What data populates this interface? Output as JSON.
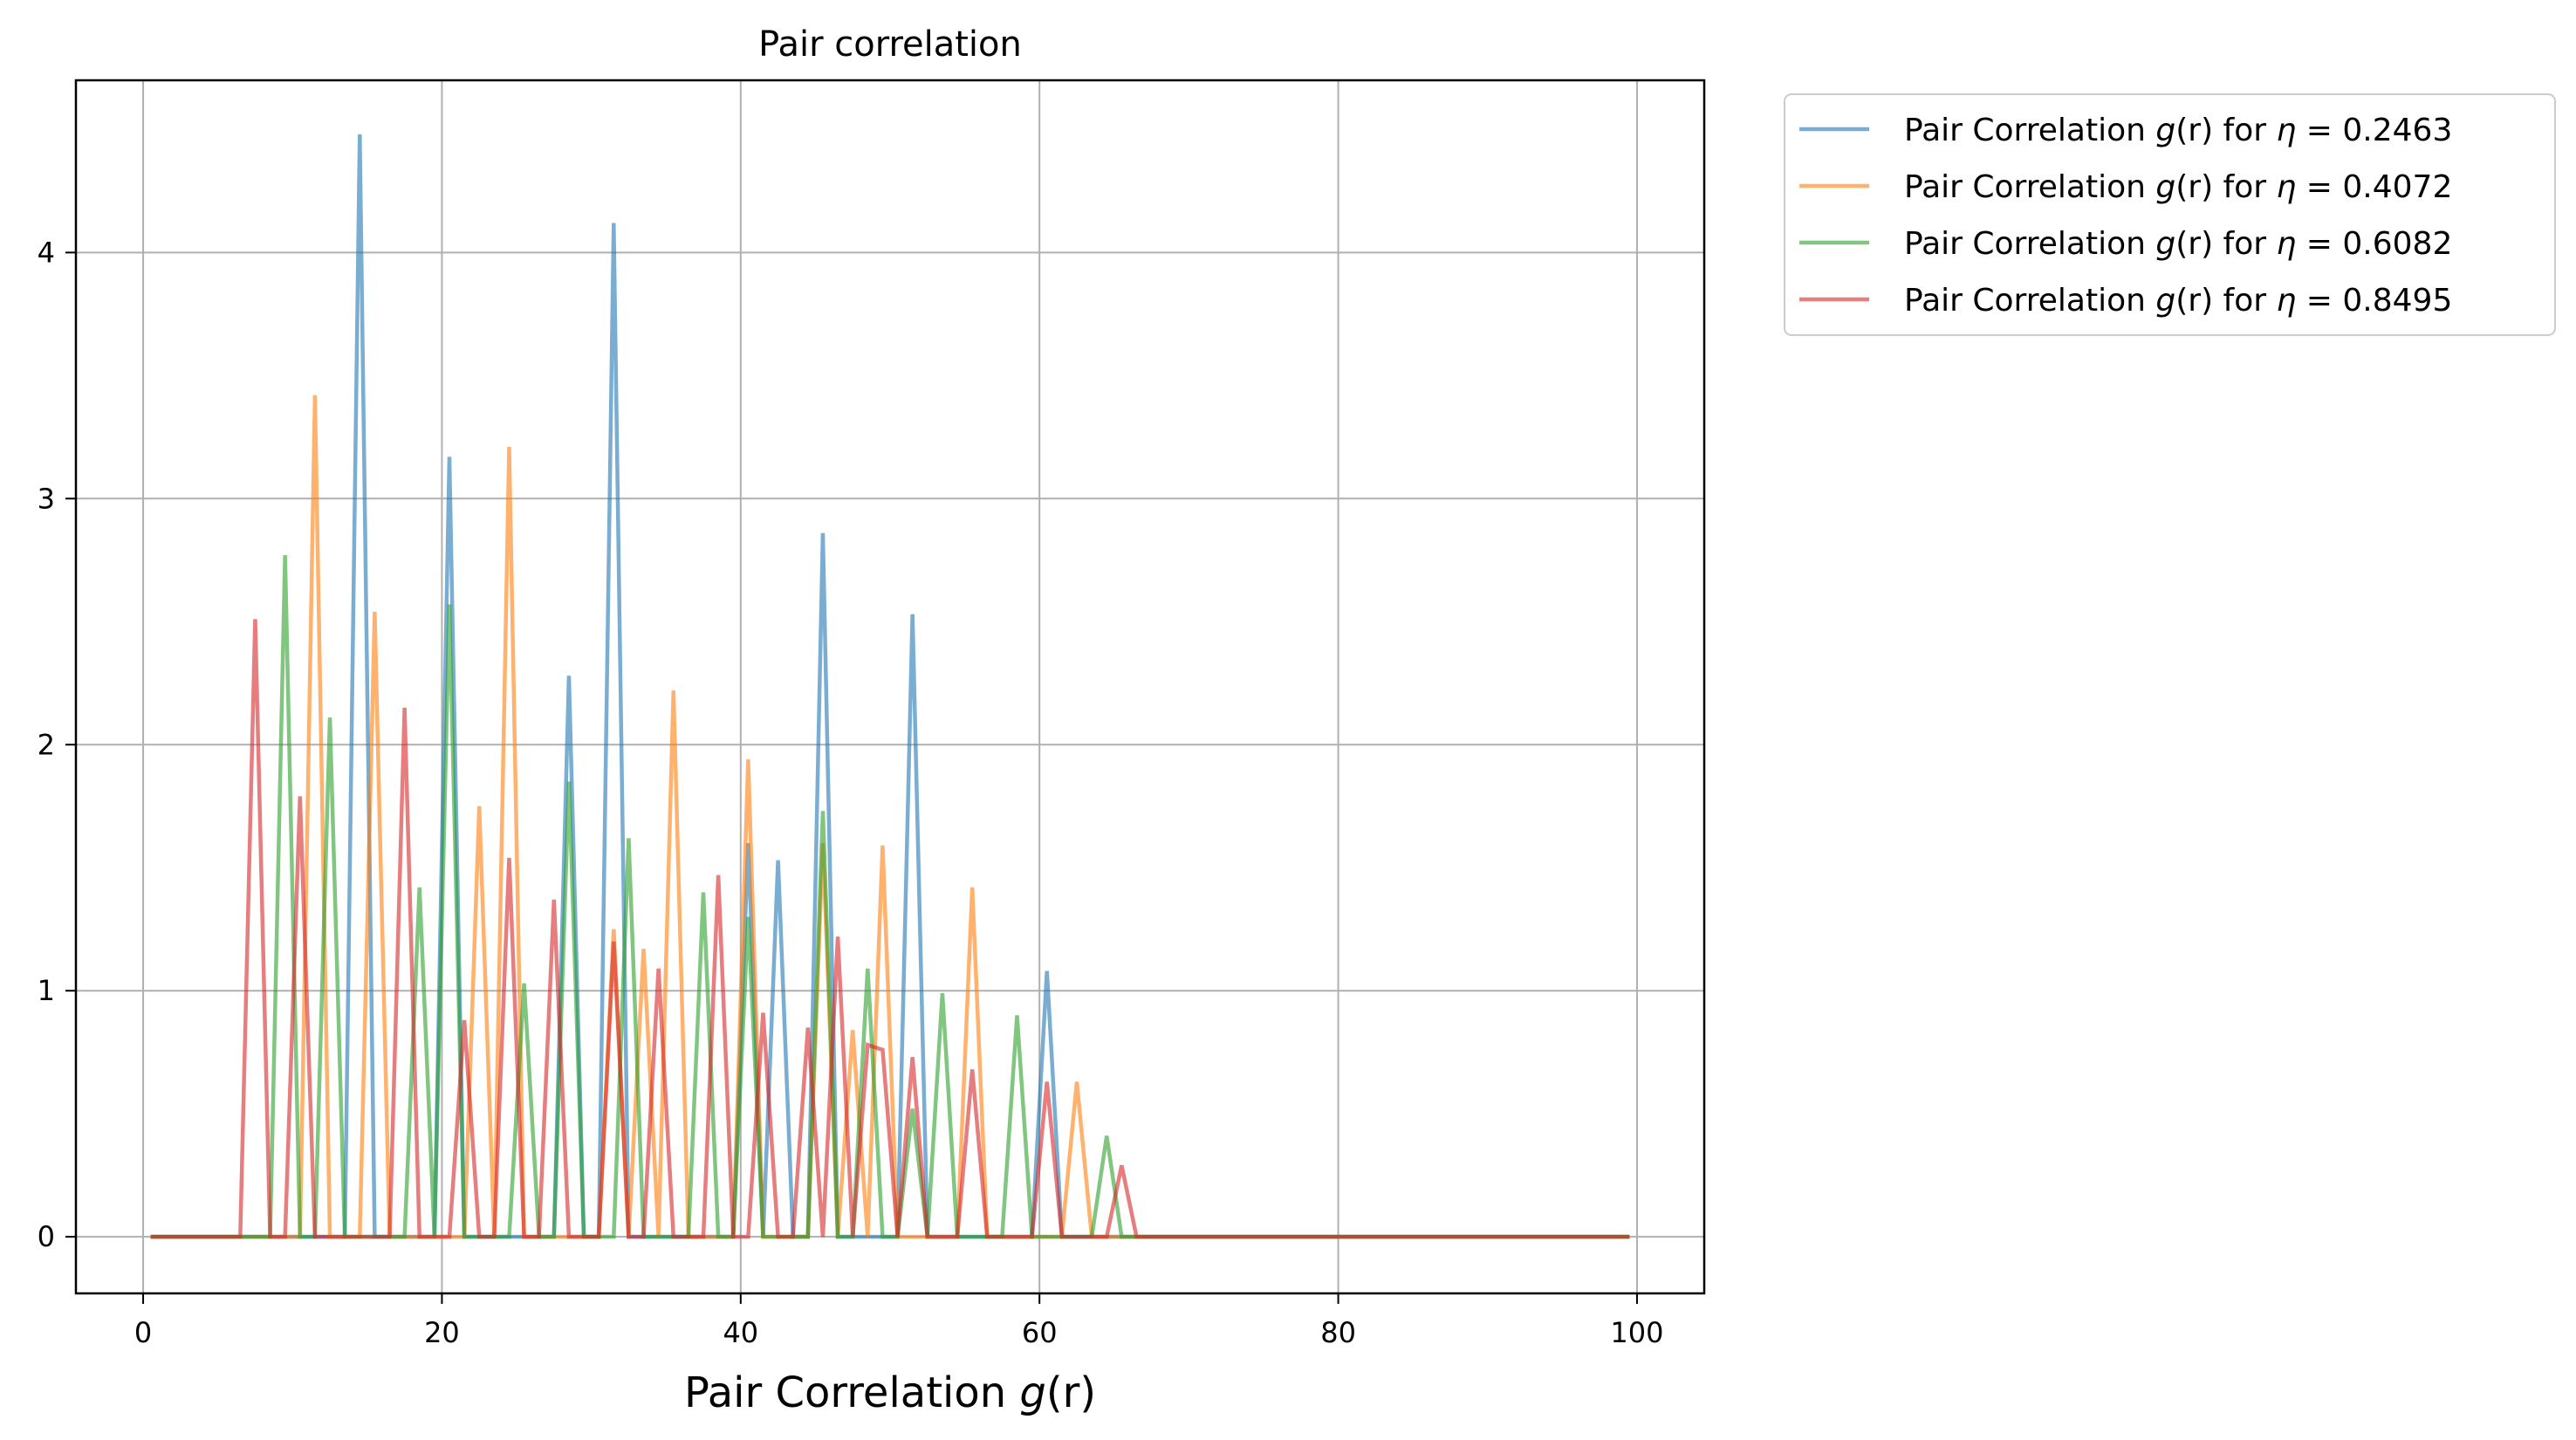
{
  "chart_data": {
    "type": "line",
    "title": "Pair correlation",
    "xlabel_prefix": "Pair Correlation ",
    "xlabel_math": "g",
    "xlabel_suffix": "(r)",
    "ylabel": "",
    "xlim": [
      -4.5,
      104.5
    ],
    "ylim": [
      -0.23,
      4.7
    ],
    "xticks": [
      0,
      20,
      40,
      60,
      80,
      100
    ],
    "yticks": [
      0,
      1,
      2,
      3,
      4
    ],
    "grid": true,
    "legend_position": "outside-top-right",
    "x_start": 0.5,
    "x_step": 1,
    "series": [
      {
        "legend_prefix": "Pair Correlation ",
        "legend_func": "g",
        "legend_arg": "(r)",
        "legend_for": " for ",
        "legend_eta": "η",
        "legend_eq": " = ",
        "legend_value": "0.2463",
        "color": "#1f77b4",
        "values": [
          0,
          0,
          0,
          0,
          0,
          0,
          0,
          0,
          0,
          0,
          0,
          0,
          0,
          0,
          4.48,
          0,
          0,
          0,
          0,
          0,
          3.17,
          0,
          0,
          0,
          0,
          0,
          0,
          0,
          2.28,
          0,
          0,
          4.12,
          0,
          0,
          0,
          0,
          0,
          0,
          0,
          0,
          1.6,
          0,
          1.53,
          0,
          0,
          2.86,
          0,
          0,
          0,
          0,
          0,
          2.53,
          0,
          0,
          0,
          0,
          0,
          0,
          0,
          0,
          1.08,
          0,
          0,
          0,
          0,
          0,
          0,
          0,
          0,
          0,
          0,
          0,
          0,
          0,
          0,
          0,
          0,
          0,
          0,
          0,
          0,
          0,
          0,
          0,
          0,
          0,
          0,
          0,
          0,
          0,
          0,
          0,
          0,
          0,
          0,
          0,
          0,
          0,
          0,
          0
        ]
      },
      {
        "legend_prefix": "Pair Correlation ",
        "legend_func": "g",
        "legend_arg": "(r)",
        "legend_for": " for ",
        "legend_eta": "η",
        "legend_eq": " = ",
        "legend_value": "0.4072",
        "color": "#ff7f0e",
        "values": [
          0,
          0,
          0,
          0,
          0,
          0,
          0,
          0,
          0,
          0,
          0,
          3.42,
          0,
          0,
          0,
          2.54,
          0,
          0,
          0,
          0,
          0,
          0,
          1.75,
          0,
          3.21,
          0,
          0,
          0,
          0,
          0,
          0,
          1.25,
          0,
          1.17,
          0,
          2.22,
          0,
          0,
          0,
          0,
          1.94,
          0,
          0,
          0,
          0,
          1.6,
          0,
          0.84,
          0,
          1.59,
          0,
          0,
          0,
          0,
          0,
          1.42,
          0,
          0,
          0,
          0,
          0,
          0,
          0.63,
          0,
          0,
          0,
          0,
          0,
          0,
          0,
          0,
          0,
          0,
          0,
          0,
          0,
          0,
          0,
          0,
          0,
          0,
          0,
          0,
          0,
          0,
          0,
          0,
          0,
          0,
          0,
          0,
          0,
          0,
          0,
          0,
          0,
          0,
          0,
          0,
          0
        ]
      },
      {
        "legend_prefix": "Pair Correlation ",
        "legend_func": "g",
        "legend_arg": "(r)",
        "legend_for": " for ",
        "legend_eta": "η",
        "legend_eq": " = ",
        "legend_value": "0.6082",
        "color": "#2ca02c",
        "values": [
          0,
          0,
          0,
          0,
          0,
          0,
          0,
          0,
          0,
          2.77,
          0,
          0,
          2.11,
          0,
          0,
          0,
          0,
          0,
          1.42,
          0,
          2.57,
          0,
          0,
          0,
          0,
          1.03,
          0,
          0,
          1.85,
          0,
          0,
          0,
          1.62,
          0,
          0,
          0,
          0,
          1.4,
          0,
          0,
          1.3,
          0,
          0,
          0,
          0,
          1.73,
          0,
          0,
          1.09,
          0,
          0,
          0.52,
          0,
          0.99,
          0,
          0,
          0,
          0,
          0.9,
          0,
          0,
          0,
          0,
          0,
          0.41,
          0,
          0,
          0,
          0,
          0,
          0,
          0,
          0,
          0,
          0,
          0,
          0,
          0,
          0,
          0,
          0,
          0,
          0,
          0,
          0,
          0,
          0,
          0,
          0,
          0,
          0,
          0,
          0,
          0,
          0,
          0,
          0,
          0,
          0,
          0
        ]
      },
      {
        "legend_prefix": "Pair Correlation ",
        "legend_func": "g",
        "legend_arg": "(r)",
        "legend_for": " for ",
        "legend_eta": "η",
        "legend_eq": " = ",
        "legend_value": "0.8495",
        "color": "#d62728",
        "values": [
          0,
          0,
          0,
          0,
          0,
          0,
          0,
          2.51,
          0,
          0,
          1.79,
          0,
          0,
          0,
          0,
          0,
          0,
          2.15,
          0,
          0,
          0,
          0.88,
          0,
          0,
          1.54,
          0,
          0,
          1.37,
          0,
          0,
          0,
          1.2,
          0,
          0,
          1.09,
          0,
          0,
          0,
          1.47,
          0,
          0,
          0.91,
          0,
          0,
          0.85,
          0,
          1.22,
          0,
          0.78,
          0.76,
          0,
          0.73,
          0,
          0,
          0,
          0.68,
          0,
          0,
          0,
          0,
          0.63,
          0,
          0,
          0,
          0,
          0.29,
          0,
          0,
          0,
          0,
          0,
          0,
          0,
          0,
          0,
          0,
          0,
          0,
          0,
          0,
          0,
          0,
          0,
          0,
          0,
          0,
          0,
          0,
          0,
          0,
          0,
          0,
          0,
          0,
          0,
          0,
          0,
          0,
          0,
          0
        ]
      }
    ]
  }
}
